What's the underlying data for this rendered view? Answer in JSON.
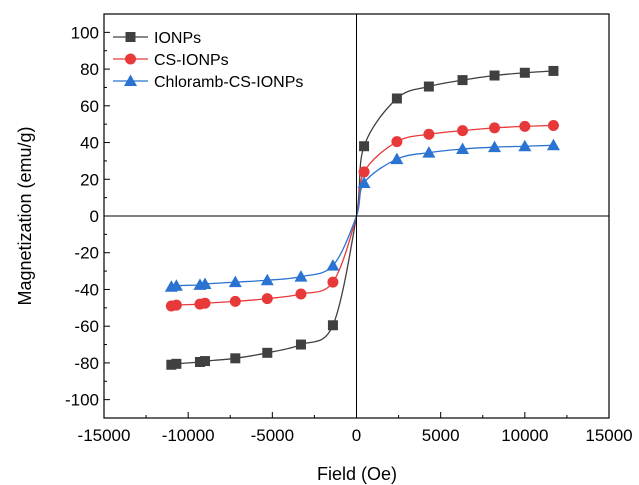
{
  "chart_data": {
    "type": "line",
    "title": "",
    "xlabel": "Field (Oe)",
    "ylabel": "Magnetization (emu/g)",
    "xlim": [
      -15000,
      15000
    ],
    "ylim": [
      -110,
      110
    ],
    "xticks": [
      -15000,
      -10000,
      -5000,
      0,
      5000,
      10000,
      15000
    ],
    "xtick_labels": [
      "-15000",
      "-10000",
      "-5000",
      "0",
      "5000",
      "10000",
      "15000"
    ],
    "yticks": [
      -100,
      -80,
      -60,
      -40,
      -20,
      0,
      20,
      40,
      60,
      80,
      100
    ],
    "ytick_labels": [
      "-100",
      "-80",
      "-60",
      "-40",
      "-20",
      "0",
      "20",
      "40",
      "60",
      "80",
      "100"
    ],
    "zero_lines": true,
    "grid": false,
    "legend_position": "top-left",
    "series": [
      {
        "name": "IONPs",
        "color": "#404040",
        "marker": "square",
        "x": [
          -11000,
          -10700,
          -9300,
          -9000,
          -7200,
          -5300,
          -3300,
          -1400,
          450,
          2400,
          4300,
          6300,
          8200,
          10000,
          11700
        ],
        "y": [
          -81,
          -80.5,
          -79.5,
          -79,
          -77.5,
          -74.5,
          -70,
          -59.5,
          38,
          64,
          70.5,
          74,
          76.5,
          78,
          79
        ]
      },
      {
        "name": "CS-IONPs",
        "color": "#e8393a",
        "marker": "circle",
        "x": [
          -11000,
          -10700,
          -9300,
          -9000,
          -7200,
          -5300,
          -3300,
          -1400,
          450,
          2400,
          4300,
          6300,
          8200,
          10000,
          11700
        ],
        "y": [
          -49,
          -48.5,
          -48,
          -47.5,
          -46.5,
          -45,
          -42.5,
          -36,
          24,
          40.5,
          44.5,
          46.5,
          48,
          48.8,
          49.3
        ]
      },
      {
        "name": "Chloramb-CS-IONPs",
        "color": "#2b73d2",
        "marker": "triangle",
        "x": [
          -11000,
          -10700,
          -9300,
          -9000,
          -7200,
          -5300,
          -3300,
          -1400,
          450,
          2400,
          4300,
          6300,
          8200,
          10000,
          11700
        ],
        "y": [
          -38.5,
          -38,
          -37.5,
          -37,
          -36,
          -35,
          -33,
          -27,
          18,
          31,
          34.5,
          36.5,
          37.5,
          38,
          38.5
        ]
      }
    ]
  }
}
